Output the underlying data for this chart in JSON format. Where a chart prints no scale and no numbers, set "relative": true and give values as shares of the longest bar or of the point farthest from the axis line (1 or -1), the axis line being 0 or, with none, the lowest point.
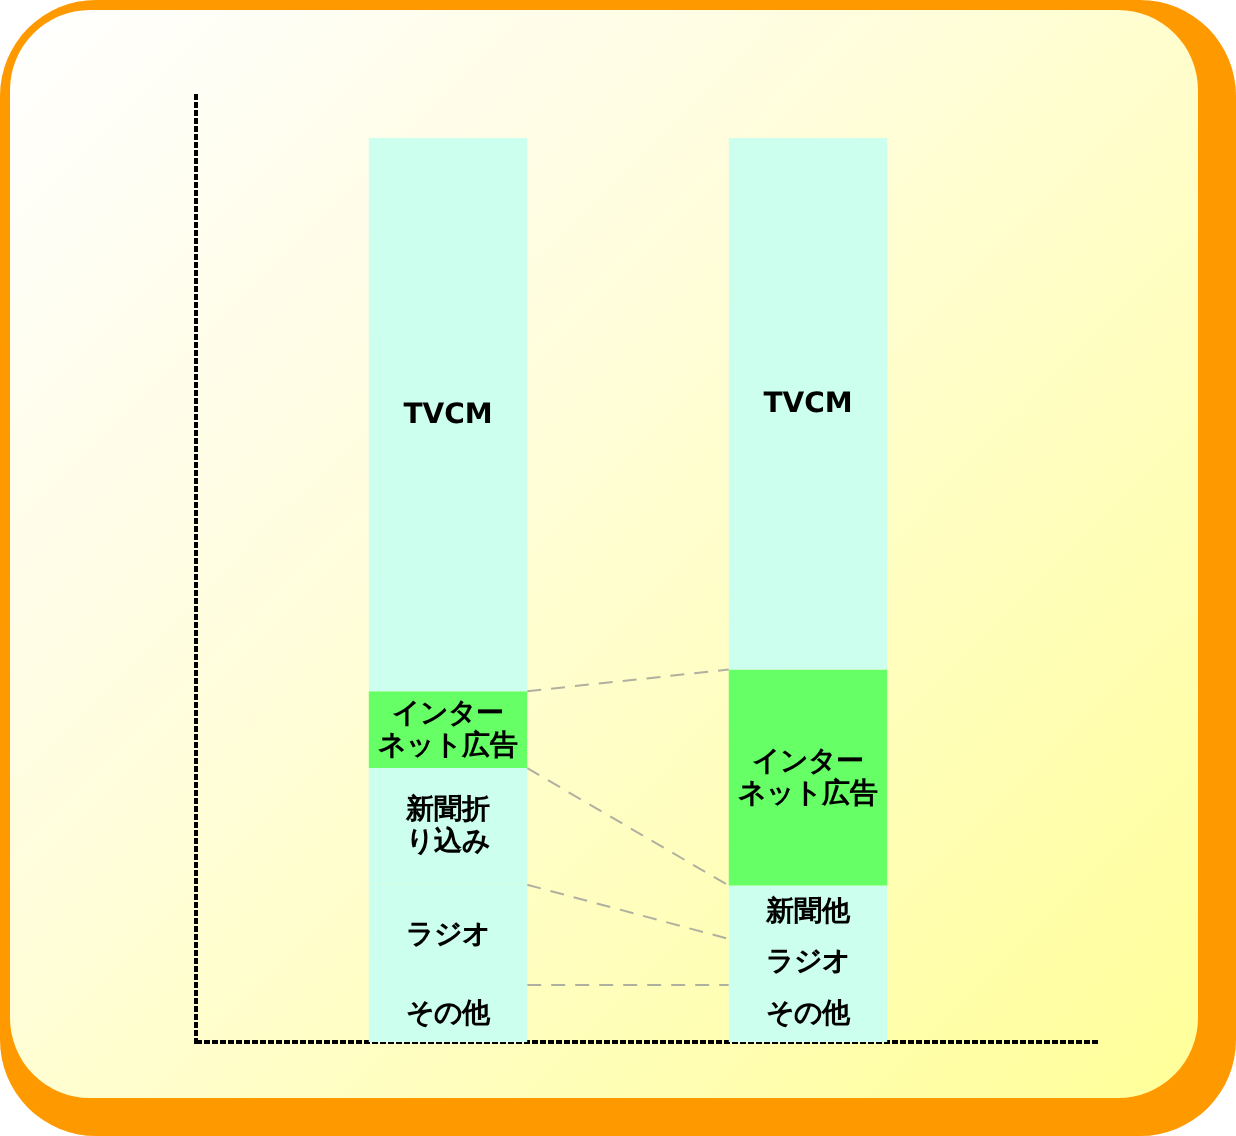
{
  "chart_data": {
    "type": "bar",
    "stacked": true,
    "relative": true,
    "categories": [
      null,
      null
    ],
    "series": [
      {
        "name": "その他",
        "color": "#ccffee",
        "values": [
          0.063,
          0.063
        ]
      },
      {
        "name": "ラジオ",
        "color": "#ccffee",
        "values": [
          0.111,
          0.051
        ]
      },
      {
        "name": "新聞折り込み",
        "color": "#ccffee",
        "values": [
          0.129,
          null
        ]
      },
      {
        "name": "新聞他",
        "color": "#ccffee",
        "values": [
          null,
          0.059
        ]
      },
      {
        "name": "インターネット広告",
        "color": "#66ff66",
        "values": [
          0.085,
          0.239
        ]
      },
      {
        "name": "TVCM",
        "color": "#ccffee",
        "values": [
          0.612,
          0.588
        ]
      }
    ]
  }
}
